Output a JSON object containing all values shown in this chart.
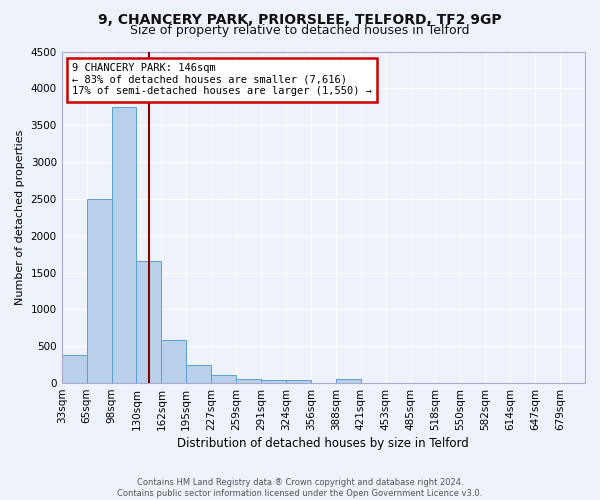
{
  "title": "9, CHANCERY PARK, PRIORSLEE, TELFORD, TF2 9GP",
  "subtitle": "Size of property relative to detached houses in Telford",
  "xlabel": "Distribution of detached houses by size in Telford",
  "ylabel": "Number of detached properties",
  "footer_line1": "Contains HM Land Registry data ® Crown copyright and database right 2024.",
  "footer_line2": "Contains public sector information licensed under the Open Government Licence v3.0.",
  "bin_labels": [
    "33sqm",
    "65sqm",
    "98sqm",
    "130sqm",
    "162sqm",
    "195sqm",
    "227sqm",
    "259sqm",
    "291sqm",
    "324sqm",
    "356sqm",
    "388sqm",
    "421sqm",
    "453sqm",
    "485sqm",
    "518sqm",
    "550sqm",
    "582sqm",
    "614sqm",
    "647sqm",
    "679sqm"
  ],
  "bar_values": [
    380,
    2500,
    3750,
    1650,
    580,
    240,
    105,
    55,
    35,
    35,
    0,
    55,
    0,
    0,
    0,
    0,
    0,
    0,
    0,
    0,
    0
  ],
  "bar_color": "#b8d0ea",
  "bar_edge_color": "#5a9fd4",
  "vline_after_bar": 3,
  "vline_color": "#8b0000",
  "annotation_title": "9 CHANCERY PARK: 146sqm",
  "annotation_line1": "← 83% of detached houses are smaller (7,616)",
  "annotation_line2": "17% of semi-detached houses are larger (1,550) →",
  "annotation_box_color": "#ffffff",
  "annotation_box_edge": "#cc0000",
  "ylim": [
    0,
    4500
  ],
  "bg_color": "#eef2fb",
  "grid_color": "#ffffff",
  "title_fontsize": 10,
  "subtitle_fontsize": 9
}
